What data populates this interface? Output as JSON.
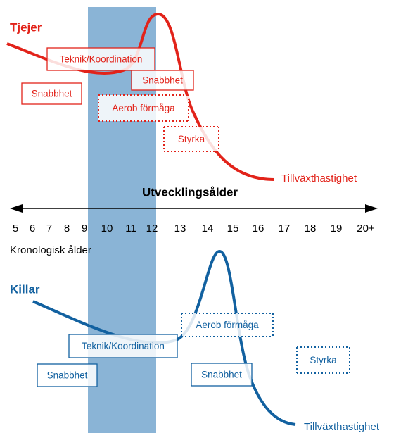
{
  "top": {
    "title": "Tjejer",
    "curve_label": "Tillväxthastighet",
    "boxes": [
      "Teknik/Koordination",
      "Snabbhet",
      "Snabbhet",
      "Aerob förmåga",
      "Styrka"
    ]
  },
  "axis": {
    "title": "Utvecklingsålder",
    "ages": [
      "5",
      "6",
      "7",
      "8",
      "9",
      "10",
      "11",
      "12",
      "13",
      "14",
      "15",
      "16",
      "17",
      "18",
      "19",
      "20+"
    ],
    "subtitle": "Kronologisk ålder"
  },
  "bottom": {
    "title": "Killar",
    "curve_label": "Tillväxthastighet",
    "boxes": [
      "Aerob förmåga",
      "Teknik/Koordination",
      "Snabbhet",
      "Snabbhet",
      "Styrka"
    ]
  }
}
